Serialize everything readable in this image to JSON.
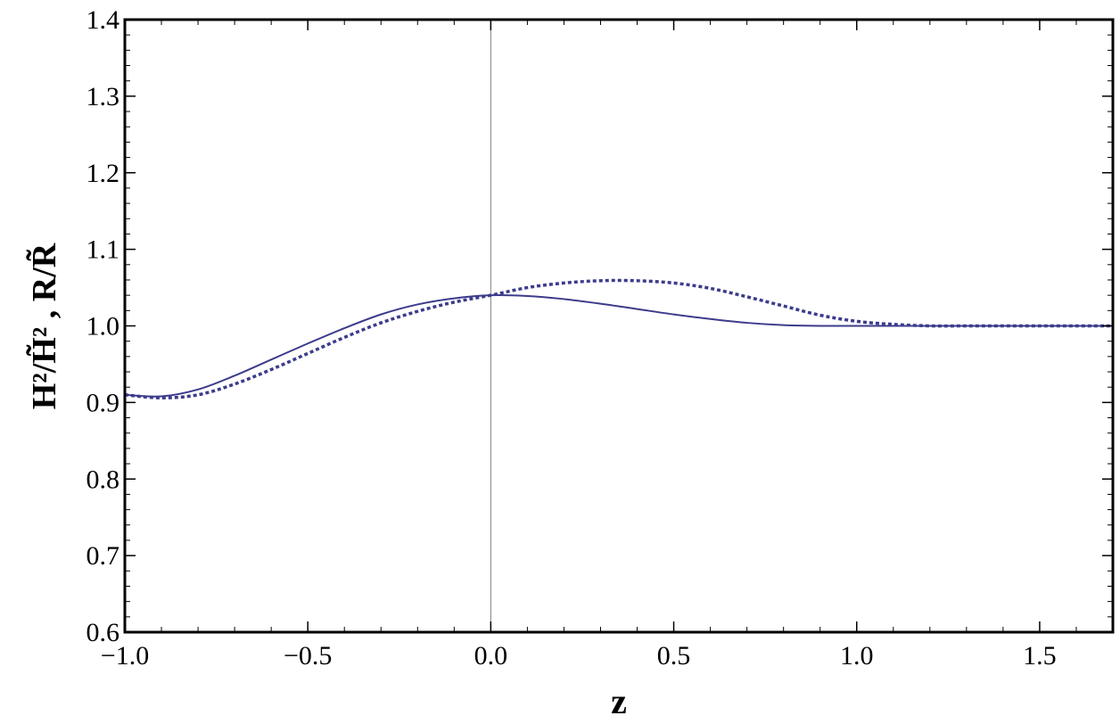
{
  "chart_data": {
    "type": "line",
    "title": "",
    "xlabel": "z",
    "ylabel": "H²/H̃² , R/R̃",
    "xlim": [
      -1.0,
      1.7
    ],
    "ylim": [
      0.6,
      1.4
    ],
    "x_ticks": [
      "−1.0",
      "−0.5",
      "0.0",
      "0.5",
      "1.0",
      "1.5"
    ],
    "y_ticks": [
      "0.6",
      "0.7",
      "0.8",
      "0.9",
      "1.0",
      "1.1",
      "1.2",
      "1.3",
      "1.4"
    ],
    "grid": false,
    "legend": "none",
    "colors": {
      "series": "#3c3c8c",
      "frame": "#000000",
      "zero_line": "#7f7f7f"
    },
    "series": [
      {
        "style": "solid",
        "x": [
          -1.0,
          -0.9,
          -0.8,
          -0.7,
          -0.6,
          -0.5,
          -0.4,
          -0.3,
          -0.2,
          -0.1,
          0.0,
          0.1,
          0.2,
          0.3,
          0.4,
          0.5,
          0.6,
          0.7,
          0.8,
          0.9,
          1.0,
          1.1,
          1.2,
          1.3,
          1.4,
          1.5,
          1.6,
          1.7
        ],
        "y": [
          0.91,
          0.908,
          0.917,
          0.935,
          0.956,
          0.977,
          0.997,
          1.015,
          1.028,
          1.036,
          1.04,
          1.039,
          1.035,
          1.029,
          1.022,
          1.015,
          1.009,
          1.004,
          1.001,
          1.0,
          1.0,
          1.0,
          1.0,
          1.0,
          1.0,
          1.0,
          1.0,
          1.0
        ]
      },
      {
        "style": "dotted",
        "x": [
          -1.0,
          -0.9,
          -0.8,
          -0.7,
          -0.6,
          -0.5,
          -0.4,
          -0.3,
          -0.2,
          -0.1,
          0.0,
          0.1,
          0.2,
          0.3,
          0.4,
          0.5,
          0.6,
          0.7,
          0.8,
          0.9,
          1.0,
          1.1,
          1.2,
          1.3,
          1.4,
          1.5,
          1.6,
          1.7
        ],
        "y": [
          0.91,
          0.906,
          0.91,
          0.924,
          0.943,
          0.964,
          0.985,
          1.004,
          1.019,
          1.031,
          1.04,
          1.05,
          1.056,
          1.059,
          1.059,
          1.056,
          1.049,
          1.038,
          1.026,
          1.014,
          1.006,
          1.002,
          1.0,
          1.0,
          1.0,
          1.0,
          1.0,
          1.0
        ]
      }
    ]
  }
}
